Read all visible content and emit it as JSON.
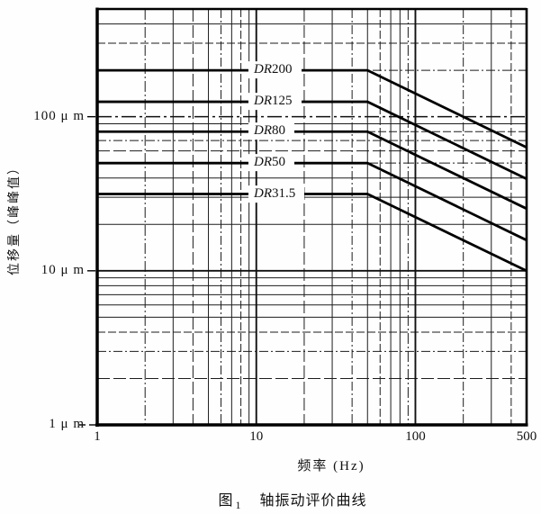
{
  "figure_caption": {
    "prefix": "图",
    "number": "1",
    "title": "轴振动评价曲线"
  },
  "chart_data": {
    "type": "line",
    "title": "图1 轴振动评价曲线",
    "xlabel": "频率 (Hz)",
    "ylabel": "位移量（峰峰值）",
    "x_scale": "log",
    "y_scale": "log",
    "xlim": [
      1,
      500
    ],
    "ylim": [
      1,
      500
    ],
    "grid": true,
    "legend_position": "inline-labels",
    "corner_frequency_hz": 50,
    "x_ticks": [
      {
        "value": 1,
        "label": "1"
      },
      {
        "value": 10,
        "label": "10"
      },
      {
        "value": 100,
        "label": "100"
      },
      {
        "value": 500,
        "label": "500"
      }
    ],
    "y_ticks": [
      {
        "value": 100,
        "label": "100 μ m"
      },
      {
        "value": 10,
        "label": "10 μ m"
      },
      {
        "value": 1,
        "label": "1 μ m"
      }
    ],
    "series": [
      {
        "name": "DR200",
        "label_italic": "DR",
        "label_value": "200",
        "points": [
          [
            1,
            200
          ],
          [
            50,
            200
          ],
          [
            500,
            63.2
          ]
        ]
      },
      {
        "name": "DR125",
        "label_italic": "DR",
        "label_value": "125",
        "points": [
          [
            1,
            125
          ],
          [
            50,
            125
          ],
          [
            500,
            39.5
          ]
        ]
      },
      {
        "name": "DR80",
        "label_italic": "DR",
        "label_value": "80",
        "points": [
          [
            1,
            80
          ],
          [
            50,
            80
          ],
          [
            500,
            25.3
          ]
        ]
      },
      {
        "name": "DR50",
        "label_italic": "DR",
        "label_value": "50",
        "points": [
          [
            1,
            50
          ],
          [
            50,
            50
          ],
          [
            500,
            15.8
          ]
        ]
      },
      {
        "name": "DR31.5",
        "label_italic": "DR",
        "label_value": "31.5",
        "points": [
          [
            1,
            31.5
          ],
          [
            50,
            31.5
          ],
          [
            500,
            10
          ]
        ]
      }
    ]
  }
}
